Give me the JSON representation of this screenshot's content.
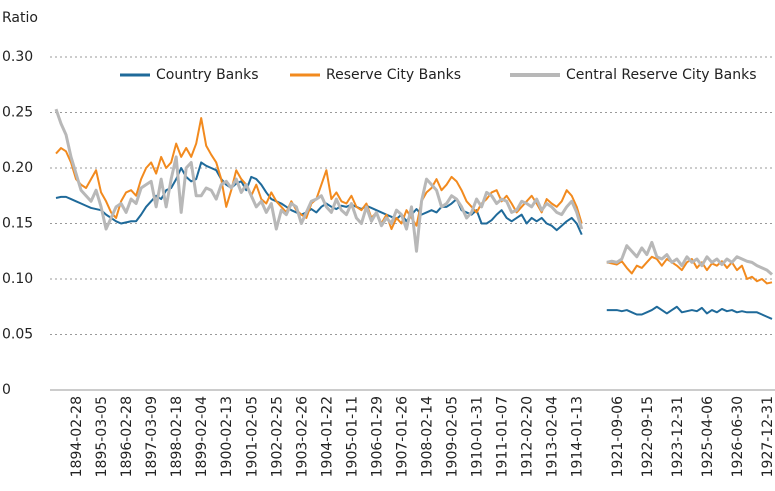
{
  "chart_data": {
    "type": "line",
    "y_label": "Ratio",
    "categories": [
      null,
      null,
      null,
      null,
      "1894-02-28",
      null,
      null,
      null,
      null,
      "1895-03-05",
      null,
      null,
      null,
      null,
      "1896-02-28",
      null,
      null,
      null,
      null,
      "1897-03-09",
      null,
      null,
      null,
      null,
      "1898-02-18",
      null,
      null,
      null,
      null,
      "1899-02-04",
      null,
      null,
      null,
      null,
      "1900-02-13",
      null,
      null,
      null,
      null,
      "1901-02-05",
      null,
      null,
      null,
      null,
      "1902-02-25",
      null,
      null,
      null,
      null,
      "1903-02-26",
      null,
      null,
      null,
      null,
      "1904-01-22",
      null,
      null,
      null,
      null,
      "1905-01-11",
      null,
      null,
      null,
      null,
      "1906-01-29",
      null,
      null,
      null,
      null,
      "1907-01-26",
      null,
      null,
      null,
      null,
      "1908-02-14",
      null,
      null,
      null,
      null,
      "1909-02-05",
      null,
      null,
      null,
      null,
      "1910-01-31",
      null,
      null,
      null,
      null,
      "1911-01-07",
      null,
      null,
      null,
      null,
      "1912-02-20",
      null,
      null,
      null,
      null,
      "1913-02-04",
      null,
      null,
      null,
      null,
      "1914-01-13",
      null,
      null,
      null,
      null,
      null,
      null,
      null,
      "1921-09-06",
      null,
      null,
      null,
      null,
      null,
      "1922-09-15",
      null,
      null,
      null,
      null,
      null,
      "1923-12-31",
      null,
      null,
      null,
      null,
      null,
      "1925-04-06",
      null,
      null,
      null,
      null,
      null,
      "1926-06-30",
      null,
      null,
      null,
      null,
      null,
      "1927-12-31",
      null
    ],
    "series": [
      {
        "name": "Country Banks",
        "color": "#1f6a9a",
        "values": [
          0.173,
          0.174,
          0.174,
          0.172,
          0.17,
          0.168,
          0.166,
          0.164,
          0.163,
          0.162,
          0.158,
          0.155,
          0.152,
          0.15,
          0.151,
          0.152,
          0.152,
          0.158,
          0.165,
          0.17,
          0.175,
          0.172,
          0.18,
          0.182,
          0.19,
          0.2,
          0.192,
          0.188,
          0.19,
          0.205,
          0.202,
          0.2,
          0.198,
          0.19,
          0.185,
          0.182,
          0.186,
          0.188,
          0.18,
          0.192,
          0.19,
          0.185,
          0.178,
          0.172,
          0.17,
          0.168,
          0.165,
          0.162,
          0.16,
          0.158,
          0.16,
          0.163,
          0.16,
          0.165,
          0.168,
          0.165,
          0.163,
          0.166,
          0.165,
          0.167,
          0.165,
          0.163,
          0.166,
          0.164,
          0.162,
          0.16,
          0.158,
          0.156,
          0.154,
          0.158,
          0.152,
          0.158,
          0.163,
          0.158,
          0.16,
          0.162,
          0.16,
          0.165,
          0.165,
          0.168,
          0.172,
          0.162,
          0.16,
          0.158,
          0.162,
          0.15,
          0.15,
          0.153,
          0.158,
          0.162,
          0.155,
          0.152,
          0.155,
          0.158,
          0.15,
          0.155,
          0.152,
          0.155,
          0.15,
          0.148,
          0.144,
          0.148,
          0.152,
          0.155,
          0.15,
          0.14,
          null,
          null,
          null,
          null,
          0.072,
          0.072,
          0.072,
          0.071,
          0.072,
          0.07,
          0.068,
          0.068,
          0.07,
          0.072,
          0.075,
          0.072,
          0.069,
          0.072,
          0.075,
          0.07,
          0.071,
          0.072,
          0.071,
          0.074,
          0.069,
          0.072,
          0.07,
          0.073,
          0.071,
          0.072,
          0.07,
          0.071,
          0.07,
          0.07,
          0.07,
          0.068,
          0.066,
          0.064
        ]
      },
      {
        "name": "Reserve City Banks",
        "color": "#f28a1e",
        "values": [
          0.213,
          0.218,
          0.215,
          0.205,
          0.19,
          0.185,
          0.182,
          0.19,
          0.198,
          0.178,
          0.17,
          0.16,
          0.155,
          0.17,
          0.178,
          0.18,
          0.175,
          0.19,
          0.2,
          0.205,
          0.195,
          0.21,
          0.2,
          0.205,
          0.222,
          0.21,
          0.218,
          0.21,
          0.222,
          0.245,
          0.22,
          0.212,
          0.205,
          0.19,
          0.165,
          0.18,
          0.198,
          0.19,
          0.185,
          0.175,
          0.185,
          0.172,
          0.168,
          0.178,
          0.17,
          0.165,
          0.16,
          0.17,
          0.162,
          0.158,
          0.155,
          0.168,
          0.172,
          0.185,
          0.198,
          0.172,
          0.178,
          0.17,
          0.168,
          0.175,
          0.165,
          0.162,
          0.168,
          0.155,
          0.16,
          0.15,
          0.158,
          0.145,
          0.155,
          0.15,
          0.162,
          0.155,
          0.148,
          0.17,
          0.178,
          0.182,
          0.19,
          0.18,
          0.185,
          0.192,
          0.188,
          0.18,
          0.17,
          0.165,
          0.16,
          0.168,
          0.172,
          0.178,
          0.18,
          0.17,
          0.175,
          0.168,
          0.16,
          0.165,
          0.17,
          0.175,
          0.168,
          0.16,
          0.172,
          0.168,
          0.165,
          0.17,
          0.18,
          0.175,
          0.165,
          0.15,
          null,
          null,
          null,
          null,
          0.115,
          0.114,
          0.113,
          0.116,
          0.11,
          0.105,
          0.112,
          0.11,
          0.115,
          0.12,
          0.118,
          0.112,
          0.118,
          0.115,
          0.112,
          0.108,
          0.115,
          0.118,
          0.11,
          0.115,
          0.108,
          0.114,
          0.112,
          0.116,
          0.11,
          0.115,
          0.108,
          0.112,
          0.1,
          0.102,
          0.098,
          0.1,
          0.096,
          0.097
        ]
      },
      {
        "name": "Central Reserve City Banks",
        "color": "#b8b8b8",
        "values": [
          0.253,
          0.24,
          0.23,
          0.21,
          0.195,
          0.18,
          0.175,
          0.17,
          0.18,
          0.165,
          0.145,
          0.155,
          0.165,
          0.168,
          0.16,
          0.172,
          0.168,
          0.182,
          0.185,
          0.188,
          0.165,
          0.19,
          0.165,
          0.19,
          0.21,
          0.16,
          0.2,
          0.205,
          0.175,
          0.175,
          0.182,
          0.18,
          0.172,
          0.185,
          0.188,
          0.182,
          0.19,
          0.178,
          0.185,
          0.175,
          0.165,
          0.17,
          0.16,
          0.168,
          0.145,
          0.162,
          0.158,
          0.168,
          0.165,
          0.15,
          0.16,
          0.17,
          0.172,
          0.175,
          0.165,
          0.16,
          0.172,
          0.162,
          0.158,
          0.168,
          0.155,
          0.15,
          0.165,
          0.152,
          0.16,
          0.148,
          0.155,
          0.15,
          0.162,
          0.158,
          0.145,
          0.165,
          0.125,
          0.17,
          0.19,
          0.185,
          0.18,
          0.165,
          0.168,
          0.175,
          0.172,
          0.165,
          0.155,
          0.16,
          0.172,
          0.165,
          0.178,
          0.175,
          0.168,
          0.172,
          0.17,
          0.16,
          0.162,
          0.17,
          0.168,
          0.165,
          0.172,
          0.162,
          0.168,
          0.165,
          0.16,
          0.158,
          0.165,
          0.17,
          0.16,
          0.145,
          null,
          null,
          null,
          null,
          0.115,
          0.116,
          0.115,
          0.118,
          0.13,
          0.125,
          0.12,
          0.128,
          0.122,
          0.133,
          0.12,
          0.118,
          0.122,
          0.115,
          0.118,
          0.112,
          0.12,
          0.115,
          0.118,
          0.112,
          0.12,
          0.115,
          0.118,
          0.113,
          0.118,
          0.115,
          0.12,
          0.118,
          0.116,
          0.115,
          0.112,
          0.11,
          0.108,
          0.104
        ]
      }
    ],
    "ylim": [
      0,
      0.3
    ],
    "yticks": [
      0,
      0.05,
      {
        "value": 0.1,
        "label": "0.10"
      },
      0.15,
      {
        "value": 0.2,
        "label": "0.20"
      },
      0.25,
      {
        "value": 0.3,
        "label": "0.30"
      }
    ],
    "grid": true,
    "legend": "top"
  }
}
